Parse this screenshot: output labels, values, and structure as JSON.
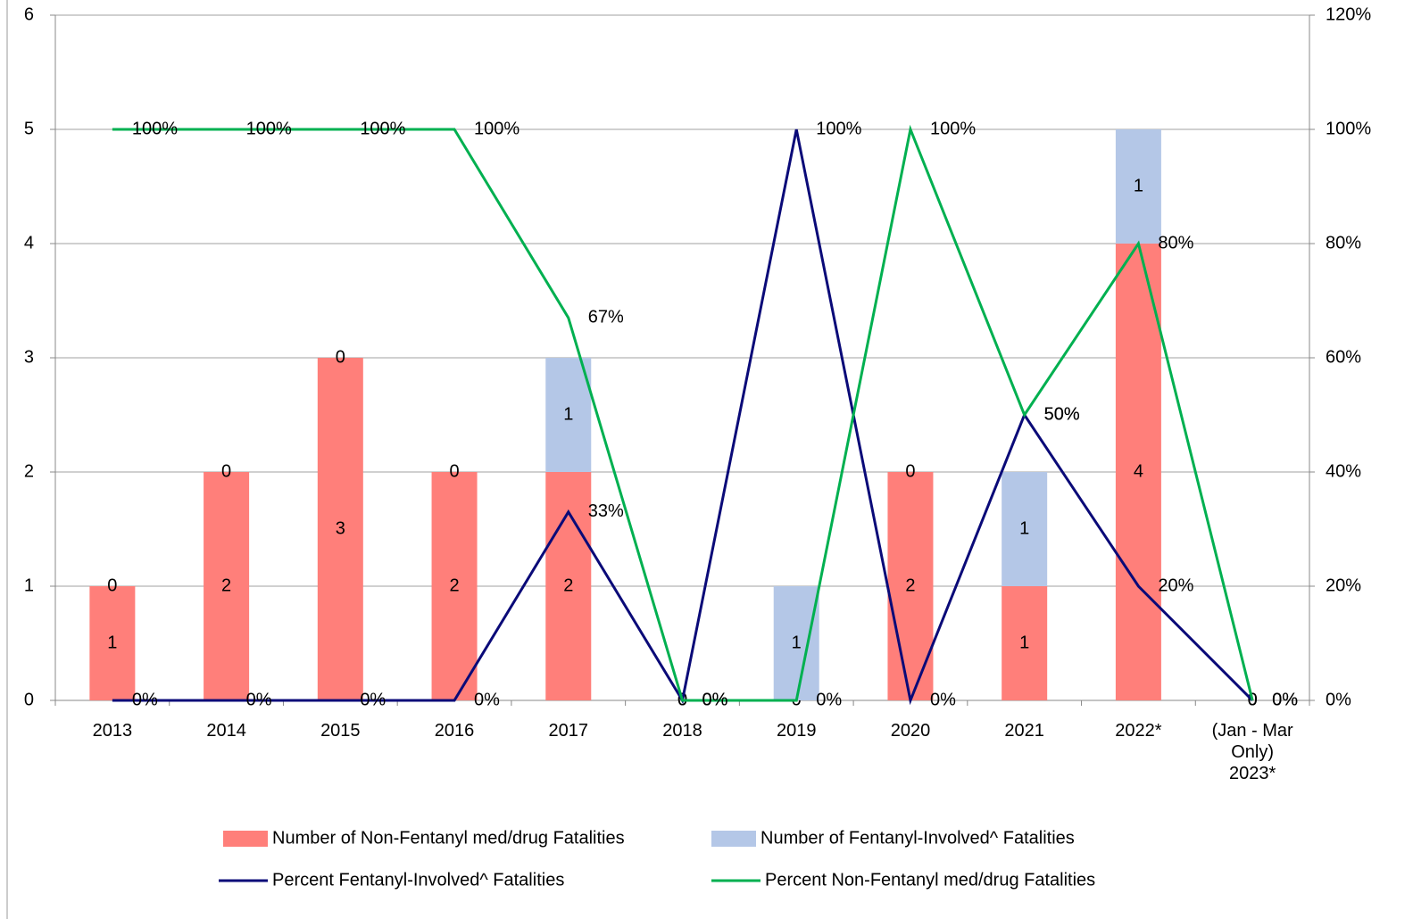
{
  "chart_data": {
    "type": "bar_line",
    "categories": [
      "2013",
      "2014",
      "2015",
      "2016",
      "2017",
      "2018",
      "2019",
      "2020",
      "2021",
      "2022*",
      "(Jan - Mar\nOnly)\n2023*"
    ],
    "series": [
      {
        "name": "Number of Non-Fentanyl med/drug Fatalities",
        "color": "#ff7f7a",
        "type": "bar",
        "values": [
          1,
          2,
          3,
          2,
          2,
          0,
          0,
          2,
          1,
          4,
          0
        ]
      },
      {
        "name": "Number of Fentanyl-Involved^ Fatalities",
        "color": "#b4c7e7",
        "type": "bar",
        "values": [
          0,
          0,
          0,
          0,
          1,
          0,
          1,
          0,
          1,
          1,
          0
        ]
      },
      {
        "name": "Percent Fentanyl-Involved^ Fatalities",
        "color": "#0a0a78",
        "type": "line",
        "axis": "y2",
        "values": [
          0,
          0,
          0,
          0,
          33,
          0,
          100,
          0,
          50,
          20,
          0
        ],
        "value_labels": [
          "0%",
          "0%",
          "0%",
          "0%",
          "33%",
          "0%",
          "100%",
          "0%",
          "50%",
          "20%",
          "0%"
        ]
      },
      {
        "name": "Percent Non-Fentanyl med/drug Fatalities",
        "color": "#00b050",
        "type": "line",
        "axis": "y2",
        "values": [
          100,
          100,
          100,
          100,
          67,
          0,
          0,
          100,
          50,
          80,
          0
        ],
        "value_labels": [
          "100%",
          "100%",
          "100%",
          "100%",
          "67%",
          "0%",
          "0%",
          "100%",
          "50%",
          "80%",
          "0%"
        ]
      }
    ],
    "ylim": [
      0,
      6
    ],
    "yticks": [
      0,
      1,
      2,
      3,
      4,
      5,
      6
    ],
    "y2lim": [
      0,
      120
    ],
    "y2ticks": [
      {
        "value": 0,
        "label": "0%"
      },
      {
        "value": 20,
        "label": "20%"
      },
      {
        "value": 40,
        "label": "40%"
      },
      {
        "value": 60,
        "label": "60%"
      },
      {
        "value": 80,
        "label": "80%"
      },
      {
        "value": 100,
        "label": "100%"
      },
      {
        "value": 120,
        "label": "120%"
      }
    ],
    "grid": true,
    "legend": "bottom"
  }
}
